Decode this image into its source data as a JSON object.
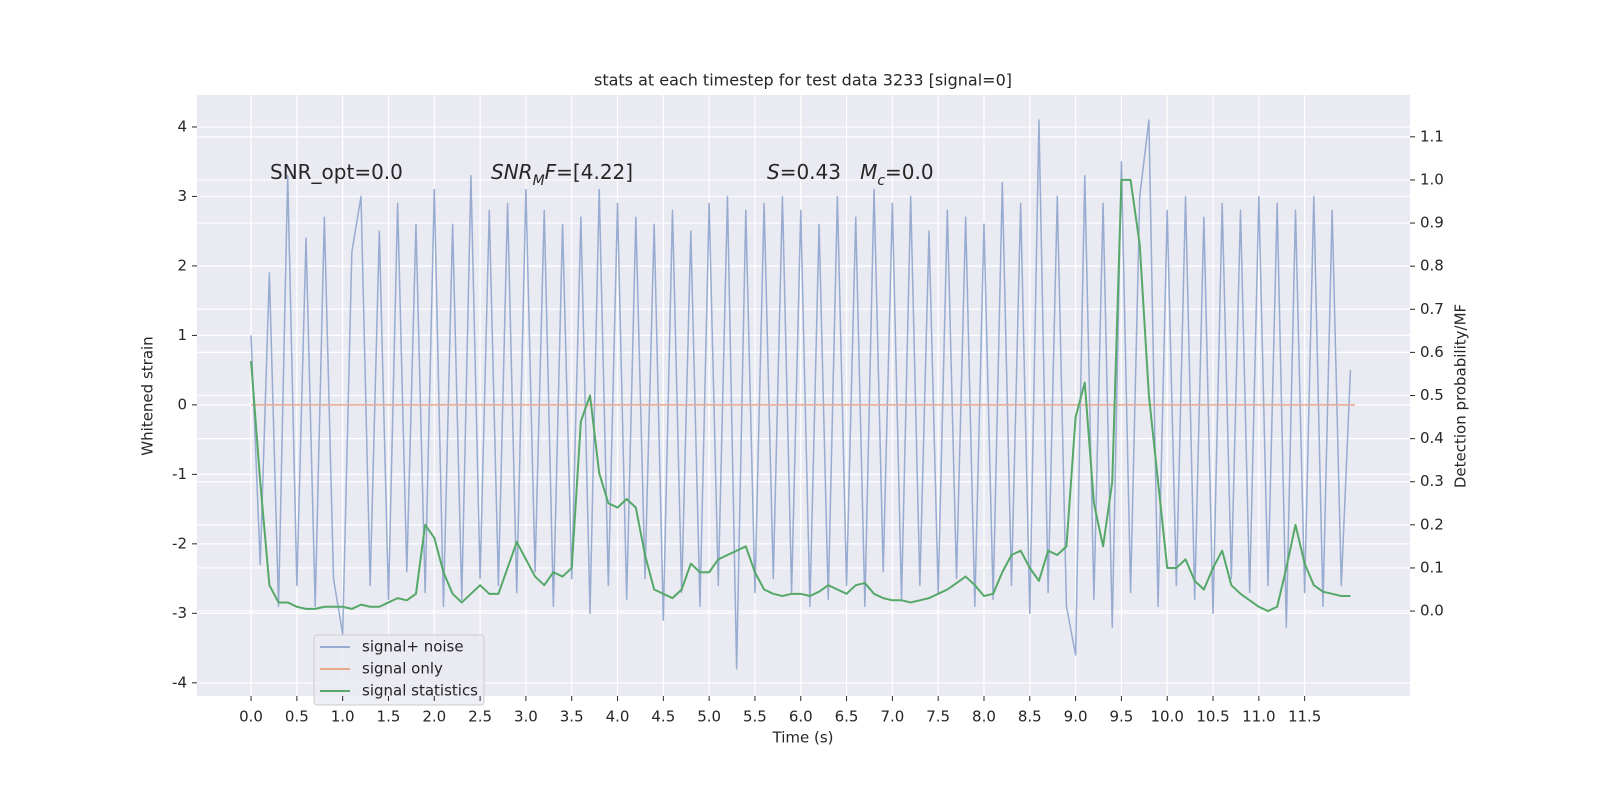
{
  "chart_data": {
    "type": "line",
    "title": "stats at each timestep for test data 3233 [signal=0]",
    "xlabel": "Time (s)",
    "ylabel": "Whitened strain",
    "y2label": "Detection probability/MF",
    "grid": true,
    "legend": "lower left",
    "xlim": [
      -0.59,
      12.65
    ],
    "ylim": [
      -4.19,
      4.46
    ],
    "y2lim": [
      -0.197,
      1.197
    ],
    "xticks": [
      {
        "value": 0,
        "label": "0.0"
      },
      0.5,
      {
        "value": 1,
        "label": "1.0"
      },
      1.5,
      {
        "value": 2,
        "label": "2.0"
      },
      2.5,
      {
        "value": 3,
        "label": "3.0"
      },
      3.5,
      {
        "value": 4,
        "label": "4.0"
      },
      4.5,
      {
        "value": 5,
        "label": "5.0"
      },
      5.5,
      {
        "value": 6,
        "label": "6.0"
      },
      6.5,
      {
        "value": 7,
        "label": "7.0"
      },
      7.5,
      {
        "value": 8,
        "label": "8.0"
      },
      8.5,
      {
        "value": 9,
        "label": "9.0"
      },
      9.5,
      {
        "value": 10,
        "label": "10.0"
      },
      10.5,
      {
        "value": 11,
        "label": "11.0"
      },
      11.5
    ],
    "yticks": [
      -4,
      -3,
      -2,
      -1,
      0,
      1,
      2,
      3,
      4
    ],
    "y2ticks": [
      {
        "value": 0,
        "label": "0.0"
      },
      0.1,
      0.2,
      0.3,
      0.4,
      0.5,
      0.6,
      0.7,
      0.8,
      0.9,
      {
        "value": 1,
        "label": "1.0"
      },
      1.1
    ],
    "annotations": [
      {
        "segments": [
          {
            "text": "SNR_opt=0.0"
          }
        ]
      },
      {
        "segments": [
          {
            "text": "SNR",
            "style": "italic"
          },
          {
            "text": "M",
            "style": "italic",
            "sub": true
          },
          {
            "text": "F",
            "style": "italic"
          },
          {
            "text": "=[4.22]"
          }
        ]
      },
      {
        "segments": [
          {
            "text": "S",
            "style": "italic"
          },
          {
            "text": "=0.43   "
          },
          {
            "text": "M",
            "style": "italic"
          },
          {
            "text": "c",
            "style": "italic",
            "sub": true
          },
          {
            "text": "=0.0"
          }
        ]
      }
    ],
    "x": [
      0.0,
      0.1,
      0.2,
      0.3,
      0.4,
      0.5,
      0.6,
      0.7,
      0.8,
      0.9,
      1.0,
      1.1,
      1.2,
      1.3,
      1.4,
      1.5,
      1.6,
      1.7,
      1.8,
      1.9,
      2.0,
      2.1,
      2.2,
      2.3,
      2.4,
      2.5,
      2.6,
      2.7,
      2.8,
      2.9,
      3.0,
      3.1,
      3.2,
      3.3,
      3.4,
      3.5,
      3.6,
      3.7,
      3.8,
      3.9,
      4.0,
      4.1,
      4.2,
      4.3,
      4.4,
      4.5,
      4.6,
      4.7,
      4.8,
      4.9,
      5.0,
      5.1,
      5.2,
      5.3,
      5.4,
      5.5,
      5.6,
      5.7,
      5.8,
      5.9,
      6.0,
      6.1,
      6.2,
      6.3,
      6.4,
      6.5,
      6.6,
      6.7,
      6.8,
      6.9,
      7.0,
      7.1,
      7.2,
      7.3,
      7.4,
      7.5,
      7.6,
      7.7,
      7.8,
      7.9,
      8.0,
      8.1,
      8.2,
      8.3,
      8.4,
      8.5,
      8.6,
      8.7,
      8.8,
      8.9,
      9.0,
      9.1,
      9.2,
      9.3,
      9.4,
      9.5,
      9.6,
      9.7,
      9.8,
      9.9,
      10.0,
      10.1,
      10.2,
      10.3,
      10.4,
      10.5,
      10.6,
      10.7,
      10.8,
      10.9,
      11.0,
      11.1,
      11.2,
      11.3,
      11.4,
      11.5,
      11.6,
      11.7,
      11.8,
      11.9,
      12.0
    ],
    "series": [
      {
        "name": "signal+ noise",
        "color": "#98abd0",
        "values": [
          1.0,
          -2.3,
          1.9,
          -2.9,
          3.3,
          -2.6,
          2.4,
          -2.9,
          2.7,
          -2.5,
          -3.3,
          2.2,
          3.0,
          -2.6,
          2.5,
          -2.8,
          2.9,
          -2.4,
          2.6,
          -2.7,
          3.1,
          -2.9,
          2.6,
          -2.8,
          3.3,
          -2.5,
          2.8,
          -2.6,
          2.9,
          -2.7,
          3.1,
          -2.4,
          2.8,
          -2.9,
          2.6,
          -2.5,
          2.7,
          -3.0,
          3.1,
          -2.6,
          2.9,
          -2.8,
          2.7,
          -2.5,
          2.6,
          -3.1,
          2.8,
          -2.7,
          2.5,
          -2.9,
          2.9,
          -2.6,
          3.0,
          -3.8,
          2.8,
          -2.7,
          2.9,
          -2.5,
          3.0,
          -2.7,
          2.8,
          -2.9,
          2.6,
          -2.8,
          3.0,
          -2.6,
          2.7,
          -2.9,
          3.1,
          -2.4,
          2.9,
          -2.8,
          3.0,
          -2.6,
          2.5,
          -2.7,
          2.8,
          -2.5,
          2.7,
          -2.9,
          2.6,
          -2.8,
          3.2,
          -2.6,
          2.9,
          -3.0,
          4.1,
          -2.7,
          3.0,
          -2.9,
          -3.6,
          3.3,
          -2.8,
          2.9,
          -3.2,
          3.5,
          -2.7,
          3.0,
          4.1,
          -2.9,
          2.8,
          -2.6,
          3.0,
          -2.8,
          2.7,
          -3.0,
          2.9,
          -2.5,
          2.8,
          -2.7,
          3.0,
          -2.6,
          2.9,
          -3.2,
          2.8,
          -2.7,
          3.0,
          -2.9,
          2.8,
          -2.6,
          0.5
        ]
      },
      {
        "name": "signal only",
        "color": "#e8ab8c",
        "x": [
          0.0,
          12.05
        ],
        "values": [
          0,
          0
        ]
      },
      {
        "name": "signal statistics",
        "color": "#55a868",
        "axis": "y2",
        "values": [
          0.58,
          0.3,
          0.06,
          0.02,
          0.02,
          0.01,
          0.005,
          0.005,
          0.01,
          0.01,
          0.01,
          0.005,
          0.015,
          0.01,
          0.01,
          0.02,
          0.03,
          0.025,
          0.04,
          0.2,
          0.17,
          0.09,
          0.04,
          0.02,
          0.04,
          0.06,
          0.04,
          0.04,
          0.1,
          0.16,
          0.12,
          0.08,
          0.06,
          0.09,
          0.08,
          0.1,
          0.44,
          0.5,
          0.32,
          0.25,
          0.24,
          0.26,
          0.24,
          0.13,
          0.05,
          0.04,
          0.03,
          0.05,
          0.11,
          0.09,
          0.09,
          0.12,
          0.13,
          0.14,
          0.15,
          0.09,
          0.05,
          0.04,
          0.035,
          0.04,
          0.04,
          0.035,
          0.045,
          0.06,
          0.05,
          0.04,
          0.06,
          0.065,
          0.04,
          0.03,
          0.025,
          0.025,
          0.02,
          0.025,
          0.03,
          0.04,
          0.05,
          0.065,
          0.08,
          0.06,
          0.035,
          0.04,
          0.09,
          0.13,
          0.14,
          0.1,
          0.07,
          0.14,
          0.13,
          0.15,
          0.45,
          0.53,
          0.25,
          0.15,
          0.3,
          1.0,
          1.0,
          0.85,
          0.5,
          0.3,
          0.1,
          0.1,
          0.12,
          0.07,
          0.05,
          0.1,
          0.14,
          0.06,
          0.04,
          0.025,
          0.01,
          0.0,
          0.01,
          0.1,
          0.2,
          0.11,
          0.06,
          0.045,
          0.04,
          0.035,
          0.035
        ]
      }
    ]
  }
}
